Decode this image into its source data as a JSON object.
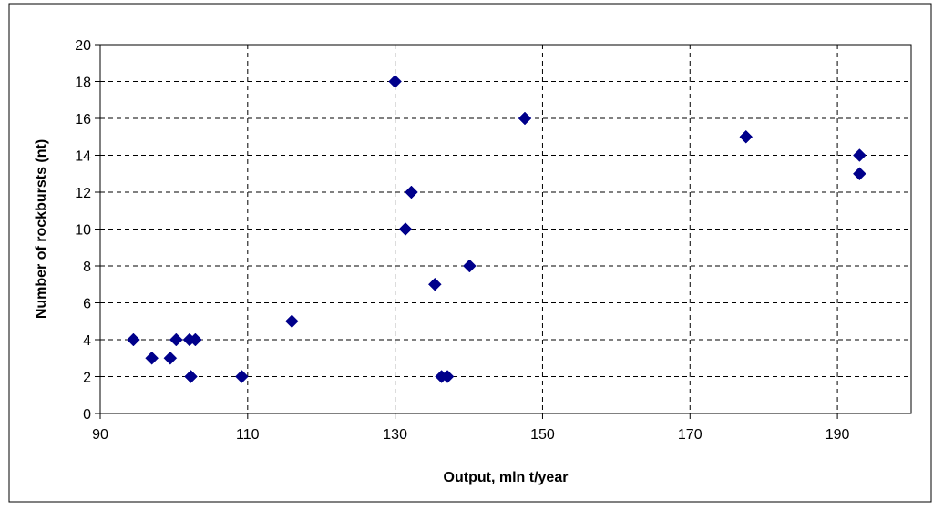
{
  "chart_data": {
    "type": "scatter",
    "title": "",
    "xlabel": "Output, mln t/year",
    "ylabel": "Number of rockbursts (nt)",
    "xlim": [
      90,
      200
    ],
    "ylim": [
      0,
      20
    ],
    "x_ticks": [
      90,
      110,
      130,
      150,
      170,
      190
    ],
    "y_ticks": [
      0,
      2,
      4,
      6,
      8,
      10,
      12,
      14,
      16,
      18,
      20
    ],
    "grid": true,
    "legend": "none",
    "marker_color": "#00008b",
    "points": [
      {
        "x": 94.5,
        "y": 4
      },
      {
        "x": 97.0,
        "y": 3
      },
      {
        "x": 99.5,
        "y": 3
      },
      {
        "x": 100.3,
        "y": 4
      },
      {
        "x": 102.1,
        "y": 4
      },
      {
        "x": 102.3,
        "y": 2
      },
      {
        "x": 102.9,
        "y": 4
      },
      {
        "x": 109.2,
        "y": 2
      },
      {
        "x": 116.0,
        "y": 5
      },
      {
        "x": 130.0,
        "y": 18
      },
      {
        "x": 131.4,
        "y": 10
      },
      {
        "x": 132.2,
        "y": 12
      },
      {
        "x": 135.4,
        "y": 7
      },
      {
        "x": 136.3,
        "y": 2
      },
      {
        "x": 137.1,
        "y": 2
      },
      {
        "x": 140.1,
        "y": 8
      },
      {
        "x": 147.6,
        "y": 16
      },
      {
        "x": 177.6,
        "y": 15
      },
      {
        "x": 193.0,
        "y": 14
      },
      {
        "x": 193.0,
        "y": 13
      }
    ]
  }
}
